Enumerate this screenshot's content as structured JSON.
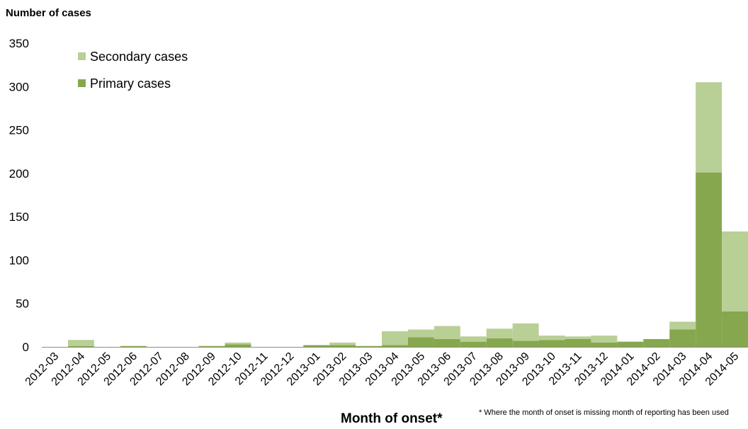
{
  "chart_data": {
    "type": "bar",
    "stacked": true,
    "ylabel": "Number of cases",
    "xlabel": "Month of onset*",
    "footnote": "* Where the month of onset is missing month of reporting has been used",
    "ylim": [
      0,
      350
    ],
    "yticks": [
      0,
      50,
      100,
      150,
      200,
      250,
      300,
      350
    ],
    "grid": false,
    "legend_position": "top-left",
    "categories": [
      "2012-03",
      "2012-04",
      "2012-05",
      "2012-06",
      "2012-07",
      "2012-08",
      "2012-09",
      "2012-10",
      "2012-11",
      "2012-12",
      "2013-01",
      "2013-02",
      "2013-03",
      "2013-04",
      "2013-05",
      "2013-06",
      "2013-07",
      "2013-08",
      "2013-09",
      "2013-10",
      "2013-11",
      "2013-12",
      "2014-01",
      "2014-02",
      "2014-03",
      "2014-04",
      "2014-05"
    ],
    "series": [
      {
        "name": "Primary cases",
        "color": "#86a74e",
        "values": [
          0,
          1,
          0,
          1,
          0,
          0,
          1,
          3,
          0,
          0,
          2,
          2,
          1,
          2,
          11,
          9,
          6,
          10,
          7,
          8,
          9,
          5,
          6,
          9,
          20,
          201,
          41
        ]
      },
      {
        "name": "Secondary cases",
        "color": "#b8cf95",
        "values": [
          0,
          7,
          0,
          0,
          0,
          0,
          0,
          2,
          0,
          0,
          0,
          3,
          0,
          16,
          9,
          15,
          6,
          11,
          20,
          5,
          3,
          8,
          0,
          0,
          9,
          104,
          92
        ]
      }
    ],
    "legend_order": [
      "Secondary cases",
      "Primary cases"
    ]
  }
}
